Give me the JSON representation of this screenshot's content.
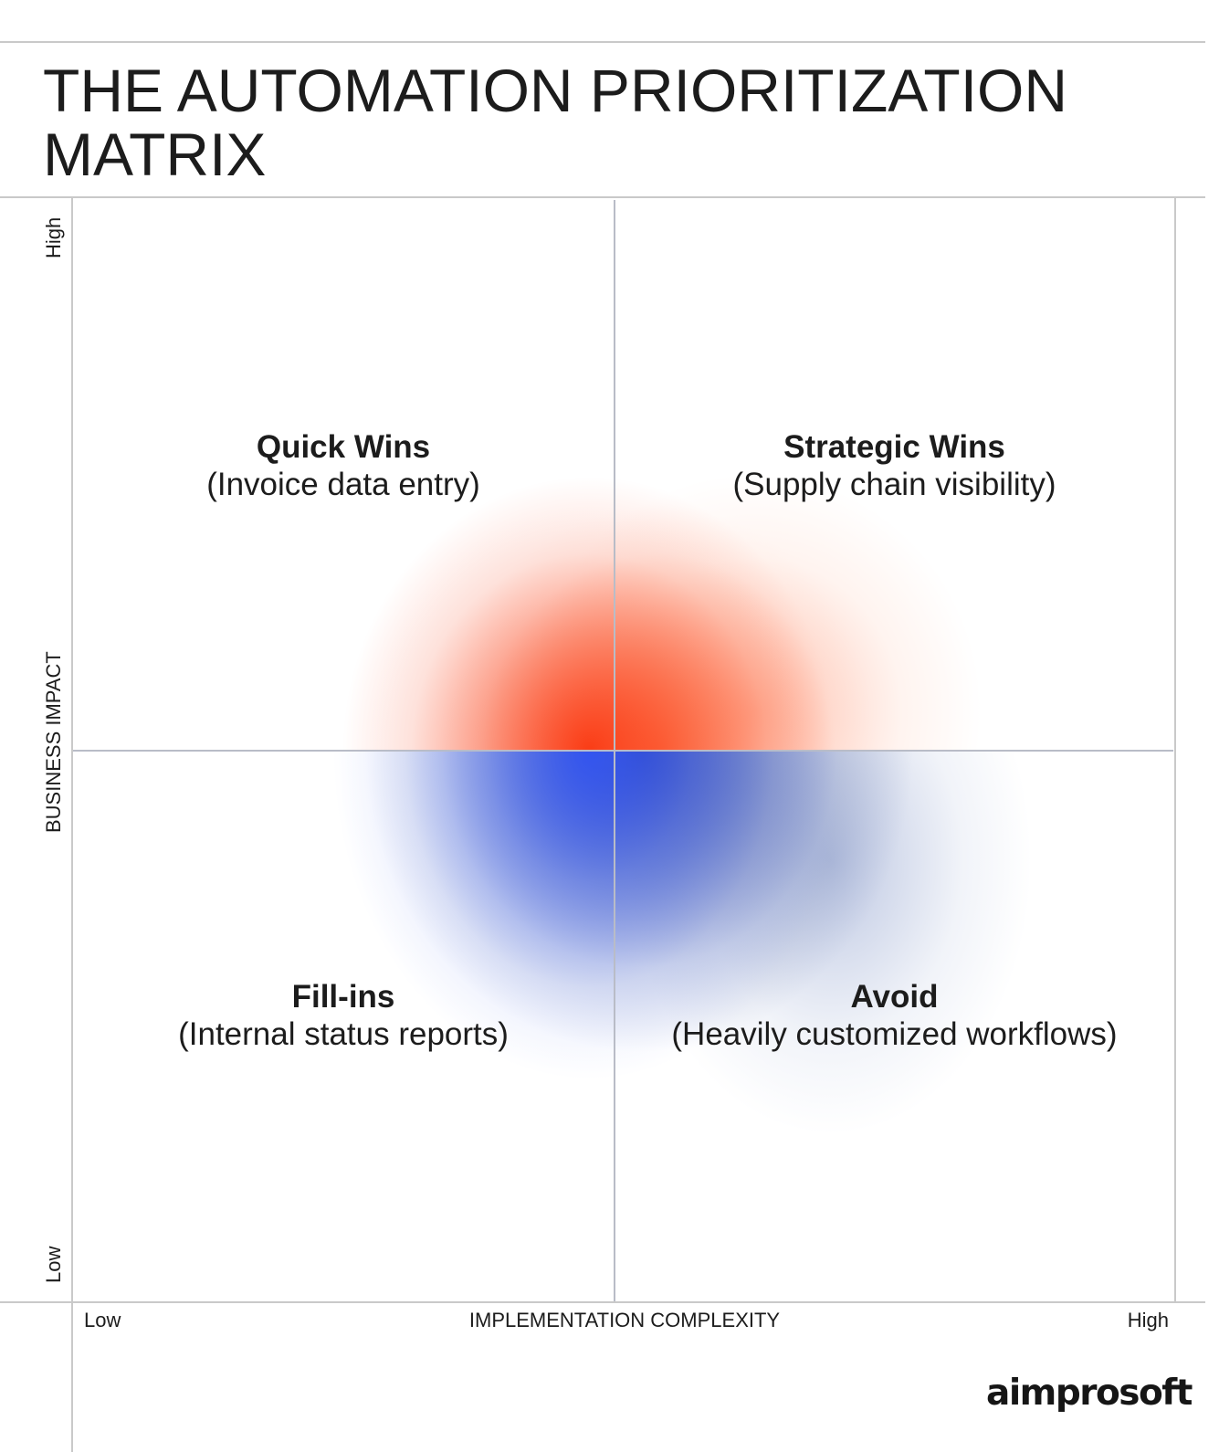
{
  "title": {
    "line1": "THE AUTOMATION PRIORITIZATION",
    "line2": "MATRIX"
  },
  "axes": {
    "y_title": "BUSINESS IMPACT",
    "y_high": "High",
    "y_low": "Low",
    "x_title": "IMPLEMENTATION COMPLEXITY",
    "x_low": "Low",
    "x_high": "High"
  },
  "quadrants": {
    "top_left": {
      "name": "Quick Wins",
      "example": "(Invoice data entry)"
    },
    "top_right": {
      "name": "Strategic Wins",
      "example": "(Supply chain visibility)"
    },
    "bottom_left": {
      "name": "Fill-ins",
      "example": "(Internal status reports)"
    },
    "bottom_right": {
      "name": "Avoid",
      "example": "(Heavily customized workflows)"
    }
  },
  "colors": {
    "high_impact": "#f53a10",
    "low_impact_low_complexity": "#3556f0",
    "low_impact_high_complexity": "#00148c"
  },
  "brand": {
    "logo_text": "aimprosoft"
  }
}
